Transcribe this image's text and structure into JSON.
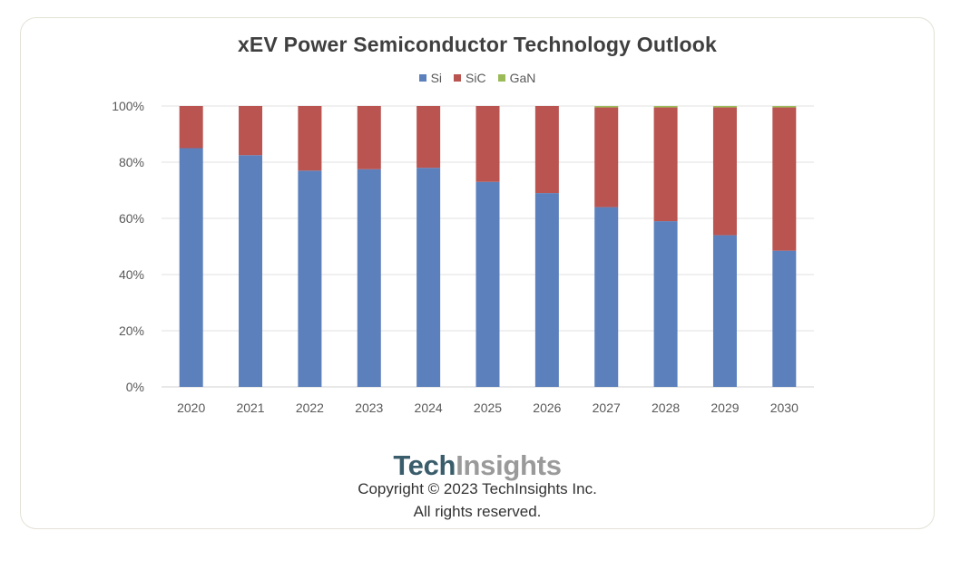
{
  "chart_data": {
    "type": "bar",
    "stacked": true,
    "title": "xEV Power Semiconductor Technology Outlook",
    "categories": [
      "2020",
      "2021",
      "2022",
      "2023",
      "2024",
      "2025",
      "2026",
      "2027",
      "2028",
      "2029",
      "2030"
    ],
    "series": [
      {
        "name": "Si",
        "color": "#5b80bc",
        "values": [
          85,
          82.5,
          77,
          77.5,
          78,
          73,
          69,
          64,
          59,
          54,
          48.5
        ]
      },
      {
        "name": "SiC",
        "color": "#b95450",
        "values": [
          15,
          17.5,
          23,
          22.5,
          22,
          27,
          31,
          35.5,
          40.5,
          45.5,
          51
        ]
      },
      {
        "name": "GaN",
        "color": "#9bbb59",
        "values": [
          0,
          0,
          0,
          0,
          0,
          0,
          0,
          0.5,
          0.5,
          0.5,
          0.5
        ]
      }
    ],
    "yticks": [
      "0%",
      "20%",
      "40%",
      "60%",
      "80%",
      "100%"
    ],
    "ylim": [
      0,
      100
    ],
    "grid": true,
    "legend_position": "top-center"
  },
  "branding": {
    "logo_part1": "Tech",
    "logo_part2": "Insights",
    "copyright_line1": "Copyright © 2023 TechInsights Inc.",
    "copyright_line2": "All rights reserved."
  }
}
